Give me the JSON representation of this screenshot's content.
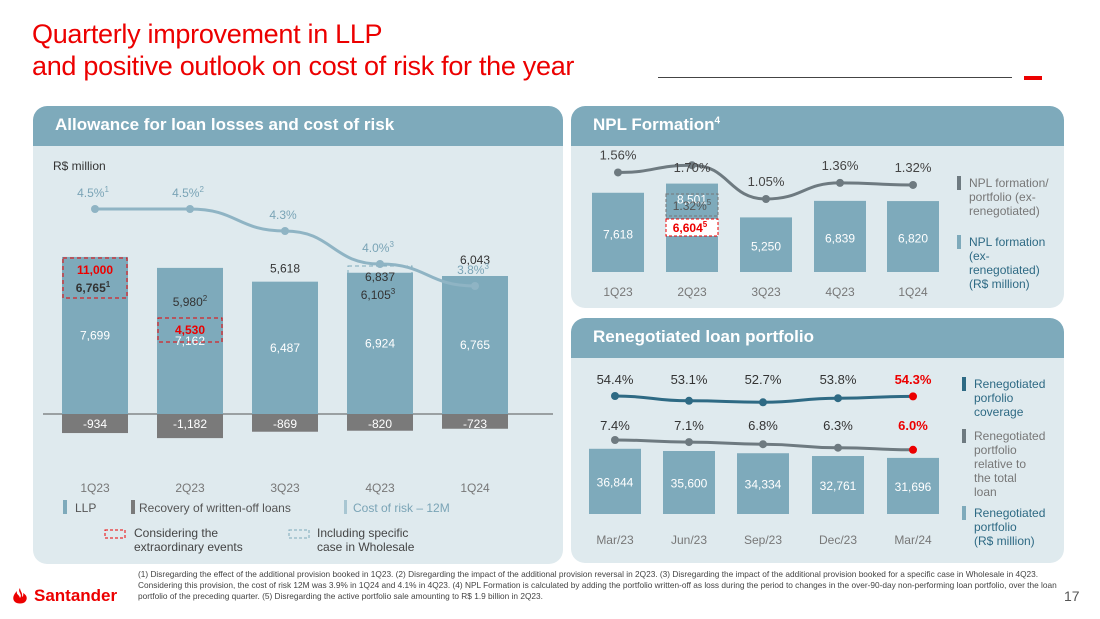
{
  "title_line1": "Quarterly improvement in LLP",
  "title_line2": "and positive outlook on cost of risk for the year",
  "left": {
    "panel_title": "Allowance for loan losses and cost of risk",
    "unit": "R$ million",
    "quarters": [
      "1Q23",
      "2Q23",
      "3Q23",
      "4Q23",
      "1Q24"
    ],
    "llp": [
      7699,
      7162,
      6487,
      6924,
      6765
    ],
    "llp_labels": [
      "7,699",
      "7,162",
      "6,487",
      "6,924",
      "6,765"
    ],
    "recovery": [
      -934,
      -1182,
      -869,
      -820,
      -723
    ],
    "recovery_labels": [
      "-934",
      "-1,182",
      "-869",
      "-820",
      "-723"
    ],
    "totals": [
      "6,765",
      "5,980",
      "5,618",
      "6,105",
      "6,043"
    ],
    "total_sups": [
      "1",
      "2",
      "",
      "3",
      ""
    ],
    "extraordinary_1q23": "11,000",
    "extraordinary_2q23": "4,530",
    "wholesale_4q23": "6,837",
    "cost_of_risk": [
      4.5,
      4.5,
      4.3,
      4.0,
      3.8
    ],
    "cost_of_risk_labels": [
      "4.5%",
      "4.5%",
      "4.3%",
      "4.0%",
      "3.8%"
    ],
    "cost_of_risk_sups": [
      "1",
      "2",
      "",
      "3",
      "3"
    ],
    "legend_llp": "LLP",
    "legend_recovery": "Recovery of written-off loans",
    "legend_cor": "Cost of risk – 12M",
    "legend_extra_1": "Considering the",
    "legend_extra_2": "extraordinary events",
    "legend_specific_1": "Including specific",
    "legend_specific_2": "case in Wholesale"
  },
  "npl": {
    "panel_title": "NPL Formation",
    "panel_title_sup": "4",
    "quarters": [
      "1Q23",
      "2Q23",
      "3Q23",
      "4Q23",
      "1Q24"
    ],
    "values": [
      7618,
      8501,
      5250,
      6839,
      6820
    ],
    "value_labels": [
      "7,618",
      "8,501",
      "5,250",
      "6,839",
      "6,820"
    ],
    "rates": [
      1.56,
      1.7,
      1.05,
      1.36,
      1.32
    ],
    "rate_labels": [
      "1.56%",
      "1.70%",
      "1.05%",
      "1.36%",
      "1.32%"
    ],
    "adjusted_rate": "1.32%",
    "adjusted_value": "6,604",
    "adjusted_sup": "5",
    "legend_rate": "NPL formation/ portfolio (ex-renegotiated)",
    "legend_value": "NPL formation (ex-renegotiated) (R$ million)"
  },
  "reneg": {
    "panel_title": "Renegotiated loan portfolio",
    "periods": [
      "Mar/23",
      "Jun/23",
      "Sep/23",
      "Dec/23",
      "Mar/24"
    ],
    "portfolio": [
      36844,
      35600,
      34334,
      32761,
      31696
    ],
    "portfolio_labels": [
      "36,844",
      "35,600",
      "34,334",
      "32,761",
      "31,696"
    ],
    "coverage": [
      54.4,
      53.1,
      52.7,
      53.8,
      54.3
    ],
    "coverage_labels": [
      "54.4%",
      "53.1%",
      "52.7%",
      "53.8%",
      "54.3%"
    ],
    "share": [
      7.4,
      7.1,
      6.8,
      6.3,
      6.0
    ],
    "share_labels": [
      "7.4%",
      "7.1%",
      "6.8%",
      "6.3%",
      "6.0%"
    ],
    "legend_coverage": "Renegotiated porfolio coverage",
    "legend_share": "Renegotiated porfolio relative to the total loan",
    "legend_portfolio": "Renegotiated portfolio (R$ million)"
  },
  "colors": {
    "red": "#ec0000",
    "bar": "#7eaabb",
    "grey": "#7a7a7a",
    "panel": "#dfeaee",
    "line": "#5b8ea3",
    "dark": "#2e6a84"
  },
  "footnote": "(1) Disregarding the effect of the additional provision booked in 1Q23. (2) Disregarding the impact of the additional provision reversal in 2Q23. (3) Disregarding the impact of the additional provision booked for a specific case in Wholesale in 4Q23. Considering this provision, the cost of risk 12M was 3.9% in 1Q24 and 4.1% in 4Q23. (4) NPL Formation is calculated by adding the portfolio written-off as loss during the period to changes in the over-90-day non-performing loan portfolio, over the loan portfolio of the preceding quarter. (5) Disregarding the active portfolio sale amounting to R$ 1.9 billion in 2Q23.",
  "logo_text": "Santander",
  "page_number": "17"
}
